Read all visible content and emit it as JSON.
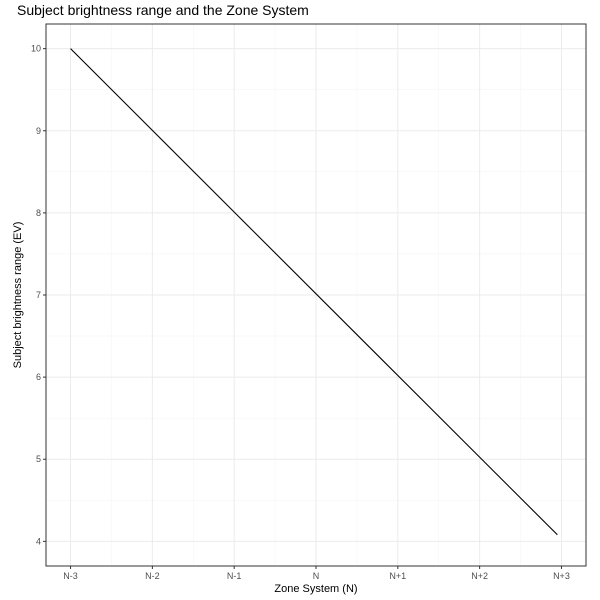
{
  "chart_data": {
    "type": "line",
    "title": "Subject brightness range and the Zone System",
    "xlabel": "Zone System (N)",
    "ylabel": "Subject brightness range (EV)",
    "x_categories": [
      "N-3",
      "N-2",
      "N-1",
      "N",
      "N+1",
      "N+2",
      "N+3"
    ],
    "x_positions": [
      -3,
      -2,
      -1,
      0,
      1,
      2,
      3
    ],
    "xlim": [
      -3.3,
      3.3
    ],
    "y_ticks": [
      4,
      5,
      6,
      7,
      8,
      9,
      10
    ],
    "ylim": [
      3.7,
      10.3
    ],
    "grid": true,
    "series": [
      {
        "x": [
          -3,
          2.95
        ],
        "y": [
          10,
          4.08
        ],
        "color": "#000000"
      }
    ]
  }
}
